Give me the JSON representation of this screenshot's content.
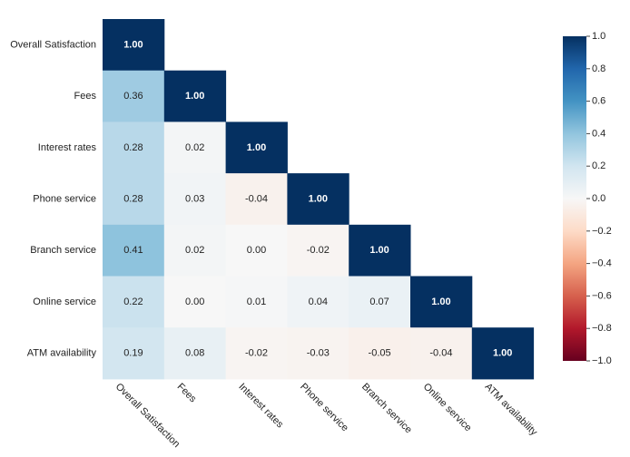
{
  "chart_data": {
    "type": "heatmap",
    "variables": [
      "Overall Satisfaction",
      "Fees",
      "Interest rates",
      "Phone service",
      "Branch service",
      "Online service",
      "ATM availability"
    ],
    "matrix": [
      [
        1.0
      ],
      [
        0.36,
        1.0
      ],
      [
        0.28,
        0.02,
        1.0
      ],
      [
        0.28,
        0.03,
        -0.04,
        1.0
      ],
      [
        0.41,
        0.02,
        0.0,
        -0.02,
        1.0
      ],
      [
        0.22,
        0.0,
        0.01,
        0.04,
        0.07,
        1.0
      ],
      [
        0.19,
        0.08,
        -0.02,
        -0.03,
        -0.05,
        -0.04,
        1.0
      ]
    ],
    "value_labels": [
      [
        "1.00"
      ],
      [
        "0.36",
        "1.00"
      ],
      [
        "0.28",
        "0.02",
        "1.00"
      ],
      [
        "0.28",
        "0.03",
        "-0.04",
        "1.00"
      ],
      [
        "0.41",
        "0.02",
        "0.00",
        "-0.02",
        "1.00"
      ],
      [
        "0.22",
        "0.00",
        "0.01",
        "0.04",
        "0.07",
        "1.00"
      ],
      [
        "0.19",
        "0.08",
        "-0.02",
        "-0.03",
        "-0.05",
        "-0.04",
        "1.00"
      ]
    ],
    "colorscale_range": [
      -1,
      1
    ],
    "colorbar_ticks": [
      "1.0",
      "0.8",
      "0.6",
      "0.4",
      "0.2",
      "0.0",
      "−0.2",
      "−0.4",
      "−0.6",
      "−0.8",
      "−1.0"
    ],
    "colorbar_tick_values": [
      1.0,
      0.8,
      0.6,
      0.4,
      0.2,
      0.0,
      -0.2,
      -0.4,
      -0.6,
      -0.8,
      -1.0
    ],
    "colorscale": "RdBu",
    "colors": {
      "low": "#67001f",
      "mid": "#f7f7f7",
      "high": "#053061"
    }
  }
}
